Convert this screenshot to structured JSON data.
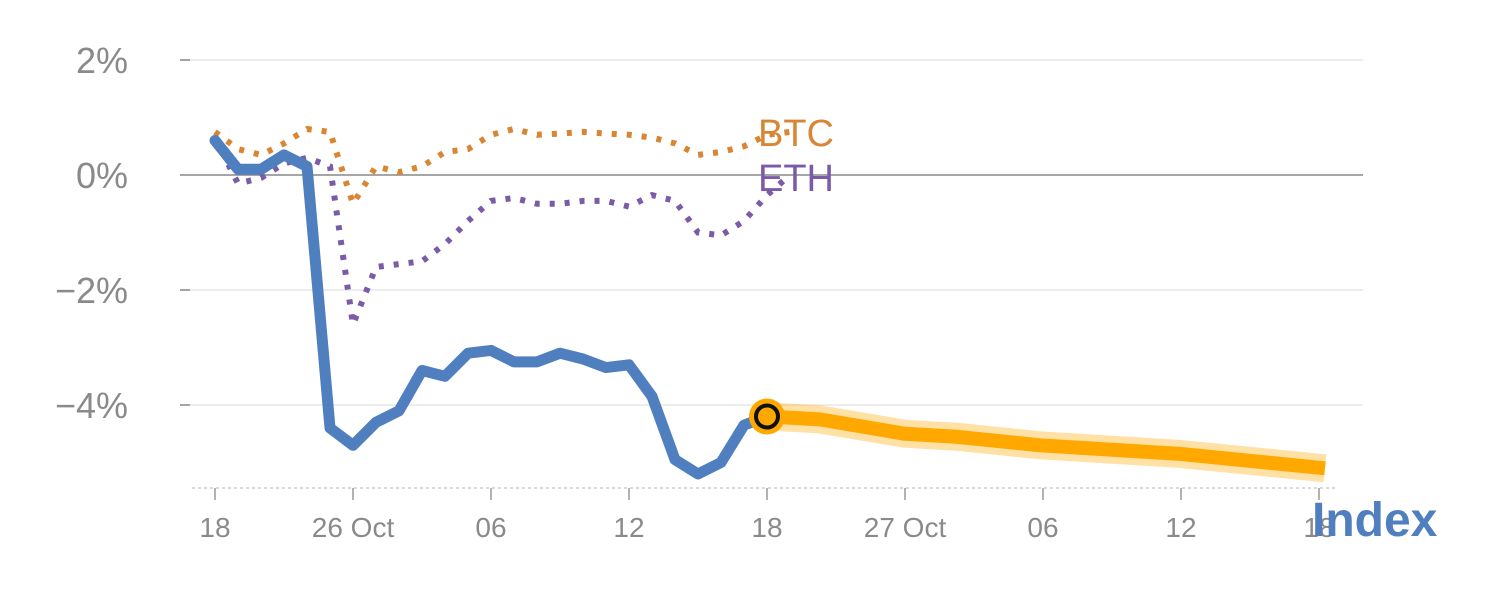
{
  "chart_data": {
    "type": "line",
    "title": "",
    "xlabel": "",
    "ylabel": "",
    "ylim": [
      -5.4,
      2.2
    ],
    "yticks": [
      2,
      0,
      -2,
      -4
    ],
    "ytick_labels": [
      "2%",
      "0%",
      "−2%",
      "−4%"
    ],
    "xtick_labels": [
      "18",
      "26 Oct",
      "06",
      "12",
      "18",
      "27 Oct",
      "06",
      "12",
      "18"
    ],
    "grid": true,
    "series": [
      {
        "name": "BTC",
        "style": "dotted",
        "color": "#d98634",
        "values": [
          0.75,
          0.45,
          0.35,
          0.55,
          0.8,
          0.75,
          -0.5,
          0.15,
          0.05,
          0.15,
          0.4,
          0.45,
          0.7,
          0.8,
          0.7,
          0.72,
          0.75,
          0.72,
          0.7,
          0.65,
          0.55,
          0.35,
          0.4,
          0.5,
          0.7,
          0.75
        ]
      },
      {
        "name": "ETH",
        "style": "dotted",
        "color": "#7a5ba8",
        "values": [
          0.65,
          -0.15,
          -0.05,
          0.2,
          0.3,
          0.15,
          -2.6,
          -1.6,
          -1.55,
          -1.5,
          -1.2,
          -0.8,
          -0.45,
          -0.4,
          -0.5,
          -0.5,
          -0.45,
          -0.45,
          -0.55,
          -0.35,
          -0.45,
          -1.0,
          -1.05,
          -0.8,
          -0.35,
          0.0
        ]
      },
      {
        "name": "Index",
        "style": "solid",
        "color": "#4f7fbf",
        "values": [
          0.6,
          0.1,
          0.1,
          0.35,
          0.15,
          -4.4,
          -4.7,
          -4.3,
          -4.1,
          -3.4,
          -3.5,
          -3.1,
          -3.05,
          -3.25,
          -3.25,
          -3.1,
          -3.2,
          -3.35,
          -3.3,
          -3.85,
          -4.95,
          -5.2,
          -5.0,
          -4.35,
          -4.2
        ]
      },
      {
        "name": "forecast",
        "style": "band",
        "color": "#ffa800",
        "x_start": 24,
        "values": [
          -4.2,
          -4.25,
          -4.5,
          -4.55,
          -4.7,
          -4.85,
          -5.1
        ]
      }
    ],
    "series_labels": {
      "btc": "BTC",
      "eth": "ETH",
      "index": "Index"
    },
    "current_point": {
      "series": "Index",
      "value": -4.2
    },
    "colors": {
      "btc": "#d98634",
      "eth": "#7a5ba8",
      "index": "#4f7fbf",
      "forecast": "#ffa800",
      "marker_stroke": "#111111",
      "zero_line": "#888888",
      "grid": "#e2e2e2"
    }
  }
}
